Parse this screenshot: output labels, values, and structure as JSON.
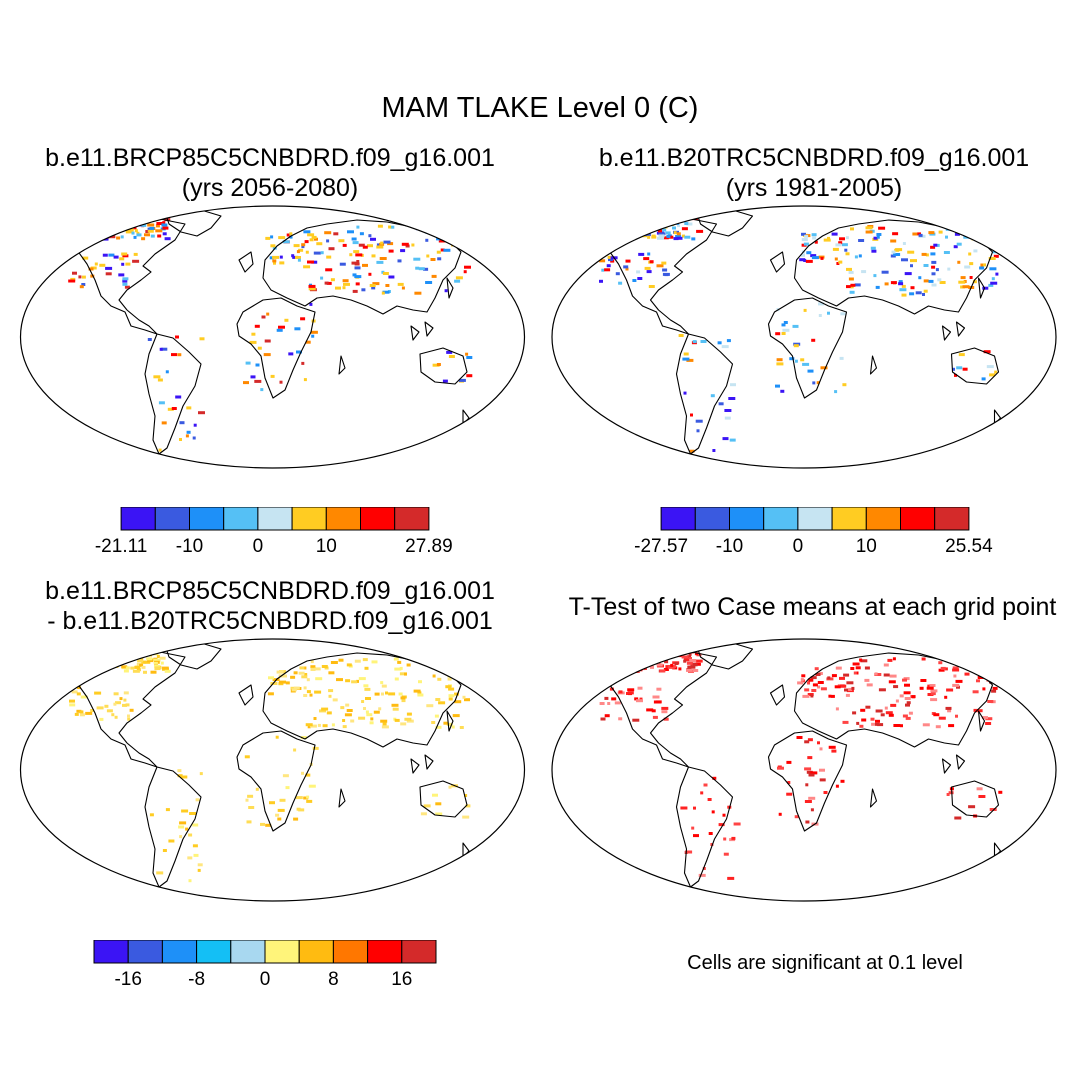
{
  "title": "MAM TLAKE Level 0 (C)",
  "panels": [
    {
      "title_line1": "b.e11.BRCP85C5CNBDRD.f09_g16.001",
      "title_line2": "(yrs 2056-2080)"
    },
    {
      "title_line1": "b.e11.B20TRC5CNBDRD.f09_g16.001",
      "title_line2": "(yrs 1981-2005)"
    },
    {
      "title_line1": "b.e11.BRCP85C5CNBDRD.f09_g16.001",
      "title_line2": "- b.e11.B20TRC5CNBDRD.f09_g16.001"
    },
    {
      "title_line1": "T-Test of two Case means at each grid point",
      "title_line2": ""
    }
  ],
  "colorbars": [
    {
      "colors": [
        "#3b14f5",
        "#3a5ae0",
        "#1e90f8",
        "#55c0f5",
        "#c6e4f2",
        "#ffcc22",
        "#ff8800",
        "#ff0000",
        "#d42a2a"
      ],
      "tick_labels": [
        "-21.11",
        "-10",
        "0",
        "10",
        "27.89"
      ],
      "tick_positions": [
        0,
        2,
        4,
        6,
        9
      ]
    },
    {
      "colors": [
        "#3b14f5",
        "#3a5ae0",
        "#1e90f8",
        "#55c0f5",
        "#c6e4f2",
        "#ffcc22",
        "#ff8800",
        "#ff0000",
        "#d42a2a"
      ],
      "tick_labels": [
        "-27.57",
        "-10",
        "0",
        "10",
        "25.54"
      ],
      "tick_positions": [
        0,
        2,
        4,
        6,
        9
      ]
    },
    {
      "colors": [
        "#3b14f5",
        "#3a5ae0",
        "#1e90f8",
        "#14bff5",
        "#a8d8f0",
        "#fff47a",
        "#ffbb11",
        "#ff7700",
        "#ff0000",
        "#d42a2a"
      ],
      "tick_labels": [
        "-16",
        "-8",
        "0",
        "8",
        "16"
      ],
      "tick_positions": [
        1,
        3,
        5,
        7,
        9
      ]
    }
  ],
  "significance_note": "Cells are significant at 0.1 level"
}
